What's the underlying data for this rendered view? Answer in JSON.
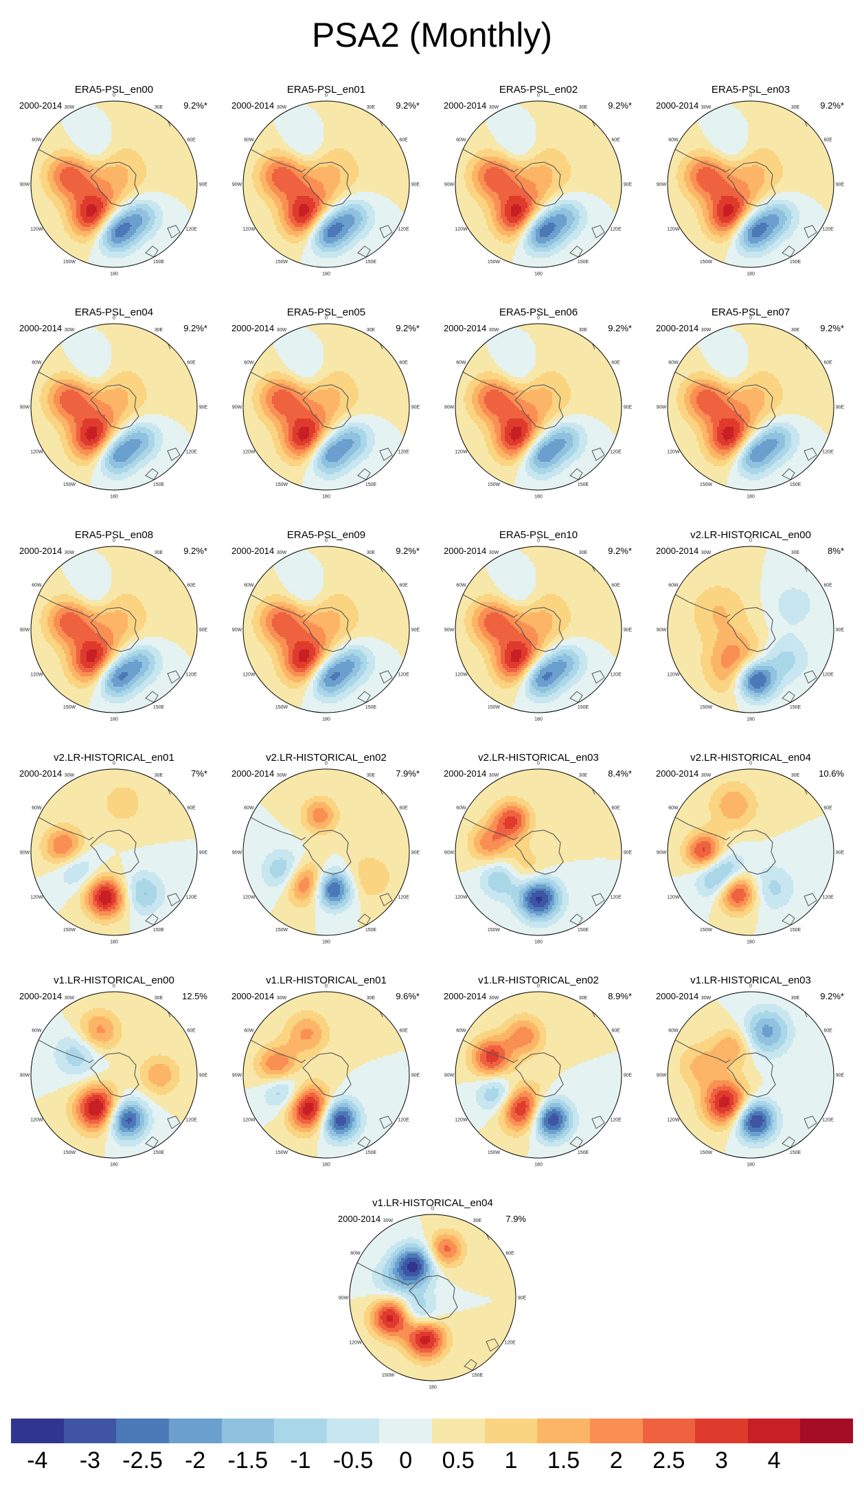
{
  "title": "PSA2 (Monthly)",
  "colors": {
    "levels": [
      "#30368f",
      "#3f55a4",
      "#4b79b7",
      "#6b9fcd",
      "#90c1df",
      "#aad7e8",
      "#c7e6f0",
      "#e4f2f2",
      "#f7e7a9",
      "#fbd482",
      "#fcb566",
      "#f98f52",
      "#ee6240",
      "#df3b2c",
      "#c81f26",
      "#a50c26"
    ],
    "coast": "#555555"
  },
  "colorbar": {
    "ticks": [
      "-4",
      "-3",
      "-2.5",
      "-2",
      "-1.5",
      "-1",
      "-0.5",
      "0",
      "0.5",
      "1",
      "1.5",
      "2",
      "2.5",
      "3",
      "4"
    ]
  },
  "axis_labels": [
    "0",
    "30E",
    "60E",
    "90E",
    "120E",
    "150E",
    "180",
    "150W",
    "120W",
    "90W",
    "60W",
    "30W"
  ],
  "chart_data": [
    {
      "type": "heatmap",
      "title": "ERA5-PSL_en00",
      "years": "2000-2014",
      "pct": "9.2%*",
      "blobs": [
        {
          "a": 180,
          "r": 0.55,
          "v": -3.6,
          "s": 0.18
        },
        {
          "a": 210,
          "r": 0.45,
          "v": 3.6,
          "s": 0.2
        },
        {
          "a": 140,
          "r": 0.5,
          "v": -1.8,
          "s": 0.17
        },
        {
          "a": 280,
          "r": 0.55,
          "v": 2.2,
          "s": 0.2
        },
        {
          "a": 0,
          "r": 0.1,
          "v": 1.2,
          "s": 0.3
        },
        {
          "a": 330,
          "r": 0.5,
          "v": -1,
          "s": 0.18
        }
      ]
    },
    {
      "type": "heatmap",
      "title": "ERA5-PSL_en01",
      "years": "2000-2014",
      "pct": "9.2%*",
      "blobs": [
        {
          "a": 180,
          "r": 0.55,
          "v": -3.6,
          "s": 0.18
        },
        {
          "a": 210,
          "r": 0.45,
          "v": 3.6,
          "s": 0.2
        },
        {
          "a": 140,
          "r": 0.5,
          "v": -1.8,
          "s": 0.17
        },
        {
          "a": 280,
          "r": 0.55,
          "v": 2.2,
          "s": 0.2
        },
        {
          "a": 0,
          "r": 0.1,
          "v": 1.2,
          "s": 0.3
        },
        {
          "a": 330,
          "r": 0.5,
          "v": -1,
          "s": 0.18
        }
      ]
    },
    {
      "type": "heatmap",
      "title": "ERA5-PSL_en02",
      "years": "2000-2014",
      "pct": "9.2%*",
      "blobs": [
        {
          "a": 180,
          "r": 0.55,
          "v": -3.6,
          "s": 0.18
        },
        {
          "a": 210,
          "r": 0.45,
          "v": 3.6,
          "s": 0.2
        },
        {
          "a": 140,
          "r": 0.5,
          "v": -1.8,
          "s": 0.17
        },
        {
          "a": 280,
          "r": 0.55,
          "v": 2.2,
          "s": 0.2
        },
        {
          "a": 0,
          "r": 0.1,
          "v": 1.2,
          "s": 0.3
        },
        {
          "a": 330,
          "r": 0.5,
          "v": -1,
          "s": 0.18
        }
      ]
    },
    {
      "type": "heatmap",
      "title": "ERA5-PSL_en03",
      "years": "2000-2014",
      "pct": "9.2%*",
      "blobs": [
        {
          "a": 180,
          "r": 0.55,
          "v": -3.6,
          "s": 0.18
        },
        {
          "a": 210,
          "r": 0.45,
          "v": 3.6,
          "s": 0.2
        },
        {
          "a": 140,
          "r": 0.5,
          "v": -1.8,
          "s": 0.17
        },
        {
          "a": 280,
          "r": 0.55,
          "v": 2.2,
          "s": 0.2
        },
        {
          "a": 0,
          "r": 0.1,
          "v": 1.2,
          "s": 0.3
        },
        {
          "a": 330,
          "r": 0.5,
          "v": -1,
          "s": 0.18
        }
      ]
    },
    {
      "type": "heatmap",
      "title": "ERA5-PSL_en04",
      "years": "2000-2014",
      "pct": "9.2%*",
      "blobs": [
        {
          "a": 180,
          "r": 0.55,
          "v": -3.2,
          "s": 0.18
        },
        {
          "a": 210,
          "r": 0.45,
          "v": 3.6,
          "s": 0.2
        },
        {
          "a": 140,
          "r": 0.5,
          "v": -1.8,
          "s": 0.17
        },
        {
          "a": 280,
          "r": 0.55,
          "v": 2.2,
          "s": 0.2
        },
        {
          "a": 0,
          "r": 0.1,
          "v": 1.2,
          "s": 0.3
        },
        {
          "a": 330,
          "r": 0.5,
          "v": -1,
          "s": 0.18
        }
      ]
    },
    {
      "type": "heatmap",
      "title": "ERA5-PSL_en05",
      "years": "2000-2014",
      "pct": "9.2%*",
      "blobs": [
        {
          "a": 180,
          "r": 0.55,
          "v": -3.2,
          "s": 0.18
        },
        {
          "a": 210,
          "r": 0.45,
          "v": 3.6,
          "s": 0.2
        },
        {
          "a": 140,
          "r": 0.5,
          "v": -1.8,
          "s": 0.17
        },
        {
          "a": 280,
          "r": 0.55,
          "v": 2.2,
          "s": 0.2
        },
        {
          "a": 0,
          "r": 0.1,
          "v": 1.2,
          "s": 0.3
        },
        {
          "a": 330,
          "r": 0.5,
          "v": -1,
          "s": 0.18
        }
      ]
    },
    {
      "type": "heatmap",
      "title": "ERA5-PSL_en06",
      "years": "2000-2014",
      "pct": "9.2%*",
      "blobs": [
        {
          "a": 180,
          "r": 0.55,
          "v": -3.2,
          "s": 0.18
        },
        {
          "a": 210,
          "r": 0.45,
          "v": 3.6,
          "s": 0.2
        },
        {
          "a": 140,
          "r": 0.5,
          "v": -1.8,
          "s": 0.17
        },
        {
          "a": 280,
          "r": 0.55,
          "v": 2.2,
          "s": 0.2
        },
        {
          "a": 0,
          "r": 0.1,
          "v": 1.2,
          "s": 0.3
        },
        {
          "a": 330,
          "r": 0.5,
          "v": -1,
          "s": 0.18
        }
      ]
    },
    {
      "type": "heatmap",
      "title": "ERA5-PSL_en07",
      "years": "2000-2014",
      "pct": "9.2%*",
      "blobs": [
        {
          "a": 180,
          "r": 0.55,
          "v": -3.2,
          "s": 0.18
        },
        {
          "a": 210,
          "r": 0.45,
          "v": 3.6,
          "s": 0.2
        },
        {
          "a": 140,
          "r": 0.5,
          "v": -1.8,
          "s": 0.17
        },
        {
          "a": 280,
          "r": 0.55,
          "v": 2.2,
          "s": 0.2
        },
        {
          "a": 0,
          "r": 0.1,
          "v": 1.2,
          "s": 0.3
        },
        {
          "a": 330,
          "r": 0.5,
          "v": -1,
          "s": 0.18
        }
      ]
    },
    {
      "type": "heatmap",
      "title": "ERA5-PSL_en08",
      "years": "2000-2014",
      "pct": "9.2%*",
      "blobs": [
        {
          "a": 180,
          "r": 0.55,
          "v": -3.4,
          "s": 0.18
        },
        {
          "a": 210,
          "r": 0.45,
          "v": 3.6,
          "s": 0.2
        },
        {
          "a": 140,
          "r": 0.5,
          "v": -1.8,
          "s": 0.17
        },
        {
          "a": 280,
          "r": 0.55,
          "v": 2.2,
          "s": 0.2
        },
        {
          "a": 0,
          "r": 0.1,
          "v": 1.2,
          "s": 0.3
        },
        {
          "a": 330,
          "r": 0.5,
          "v": -1,
          "s": 0.18
        }
      ]
    },
    {
      "type": "heatmap",
      "title": "ERA5-PSL_en09",
      "years": "2000-2014",
      "pct": "9.2%*",
      "blobs": [
        {
          "a": 180,
          "r": 0.55,
          "v": -3.4,
          "s": 0.18
        },
        {
          "a": 210,
          "r": 0.45,
          "v": 3.6,
          "s": 0.2
        },
        {
          "a": 140,
          "r": 0.5,
          "v": -1.8,
          "s": 0.17
        },
        {
          "a": 280,
          "r": 0.55,
          "v": 2.2,
          "s": 0.2
        },
        {
          "a": 0,
          "r": 0.1,
          "v": 1.2,
          "s": 0.3
        },
        {
          "a": 330,
          "r": 0.5,
          "v": -1,
          "s": 0.18
        }
      ]
    },
    {
      "type": "heatmap",
      "title": "ERA5-PSL_en10",
      "years": "2000-2014",
      "pct": "9.2%*",
      "blobs": [
        {
          "a": 180,
          "r": 0.55,
          "v": -3.4,
          "s": 0.18
        },
        {
          "a": 210,
          "r": 0.45,
          "v": 3.6,
          "s": 0.2
        },
        {
          "a": 140,
          "r": 0.5,
          "v": -1.8,
          "s": 0.17
        },
        {
          "a": 280,
          "r": 0.55,
          "v": 2.2,
          "s": 0.2
        },
        {
          "a": 0,
          "r": 0.1,
          "v": 1.2,
          "s": 0.3
        },
        {
          "a": 330,
          "r": 0.5,
          "v": -1,
          "s": 0.18
        }
      ]
    },
    {
      "type": "heatmap",
      "title": "v2.LR-HISTORICAL_en00",
      "years": "2000-2014",
      "pct": "8%*",
      "blobs": [
        {
          "a": 175,
          "r": 0.6,
          "v": -4,
          "s": 0.17
        },
        {
          "a": 200,
          "r": 0.45,
          "v": 2.2,
          "s": 0.25
        },
        {
          "a": 130,
          "r": 0.55,
          "v": -1.2,
          "s": 0.2
        },
        {
          "a": 300,
          "r": 0.45,
          "v": 1,
          "s": 0.25
        },
        {
          "a": 60,
          "r": 0.6,
          "v": -0.8,
          "s": 0.2
        }
      ]
    },
    {
      "type": "heatmap",
      "title": "v2.LR-HISTORICAL_en01",
      "years": "2000-2014",
      "pct": "7%*",
      "blobs": [
        {
          "a": 190,
          "r": 0.55,
          "v": 3.5,
          "s": 0.17
        },
        {
          "a": 145,
          "r": 0.6,
          "v": -1.6,
          "s": 0.18
        },
        {
          "a": 250,
          "r": 0.5,
          "v": -1.4,
          "s": 0.18
        },
        {
          "a": 275,
          "r": 0.6,
          "v": 2.4,
          "s": 0.17
        },
        {
          "a": 10,
          "r": 0.6,
          "v": 0.8,
          "s": 0.2
        }
      ]
    },
    {
      "type": "heatmap",
      "title": "v2.LR-HISTORICAL_en02",
      "years": "2000-2014",
      "pct": "7.9%*",
      "blobs": [
        {
          "a": 170,
          "r": 0.45,
          "v": -3.4,
          "s": 0.16
        },
        {
          "a": 215,
          "r": 0.45,
          "v": 2.6,
          "s": 0.18
        },
        {
          "a": 245,
          "r": 0.55,
          "v": -1.8,
          "s": 0.18
        },
        {
          "a": 350,
          "r": 0.45,
          "v": 1.8,
          "s": 0.15
        },
        {
          "a": 120,
          "r": 0.6,
          "v": 1,
          "s": 0.2
        }
      ]
    },
    {
      "type": "heatmap",
      "title": "v2.LR-HISTORICAL_en03",
      "years": "2000-2014",
      "pct": "8.4%*",
      "blobs": [
        {
          "a": 180,
          "r": 0.55,
          "v": -3.8,
          "s": 0.18
        },
        {
          "a": 320,
          "r": 0.5,
          "v": 2.6,
          "s": 0.16
        },
        {
          "a": 235,
          "r": 0.55,
          "v": -1.8,
          "s": 0.17
        },
        {
          "a": 280,
          "r": 0.6,
          "v": 1.8,
          "s": 0.17
        },
        {
          "a": 215,
          "r": 0.3,
          "v": 1.2,
          "s": 0.2
        }
      ]
    },
    {
      "type": "heatmap",
      "title": "v2.LR-HISTORICAL_en04",
      "years": "2000-2014",
      "pct": "10.6%",
      "blobs": [
        {
          "a": 200,
          "r": 0.5,
          "v": 3.6,
          "s": 0.17
        },
        {
          "a": 230,
          "r": 0.45,
          "v": -2.8,
          "s": 0.2
        },
        {
          "a": 270,
          "r": 0.55,
          "v": 3,
          "s": 0.16
        },
        {
          "a": 150,
          "r": 0.5,
          "v": -1.2,
          "s": 0.2
        },
        {
          "a": 340,
          "r": 0.6,
          "v": 1.4,
          "s": 0.2
        }
      ]
    },
    {
      "type": "heatmap",
      "title": "v1.LR-HISTORICAL_en00",
      "years": "2000-2014",
      "pct": "12.5%",
      "blobs": [
        {
          "a": 165,
          "r": 0.55,
          "v": -3.6,
          "s": 0.17
        },
        {
          "a": 205,
          "r": 0.45,
          "v": 3.8,
          "s": 0.19
        },
        {
          "a": 300,
          "r": 0.5,
          "v": -1.4,
          "s": 0.2
        },
        {
          "a": 340,
          "r": 0.55,
          "v": 1.8,
          "s": 0.18
        },
        {
          "a": 90,
          "r": 0.55,
          "v": 1.4,
          "s": 0.17
        }
      ]
    },
    {
      "type": "heatmap",
      "title": "v1.LR-HISTORICAL_en01",
      "years": "2000-2014",
      "pct": "9.6%*",
      "blobs": [
        {
          "a": 165,
          "r": 0.55,
          "v": -3.8,
          "s": 0.17
        },
        {
          "a": 205,
          "r": 0.45,
          "v": 3.8,
          "s": 0.19
        },
        {
          "a": 250,
          "r": 0.55,
          "v": -1.8,
          "s": 0.17
        },
        {
          "a": 280,
          "r": 0.6,
          "v": 2.2,
          "s": 0.17
        },
        {
          "a": 335,
          "r": 0.55,
          "v": 1.6,
          "s": 0.18
        }
      ]
    },
    {
      "type": "heatmap",
      "title": "v1.LR-HISTORICAL_en02",
      "years": "2000-2014",
      "pct": "8.9%*",
      "blobs": [
        {
          "a": 165,
          "r": 0.55,
          "v": -3.8,
          "s": 0.17
        },
        {
          "a": 205,
          "r": 0.45,
          "v": 3.4,
          "s": 0.19
        },
        {
          "a": 245,
          "r": 0.55,
          "v": -1.8,
          "s": 0.17
        },
        {
          "a": 290,
          "r": 0.6,
          "v": 2.8,
          "s": 0.17
        },
        {
          "a": 340,
          "r": 0.5,
          "v": 1.8,
          "s": 0.17
        }
      ]
    },
    {
      "type": "heatmap",
      "title": "v1.LR-HISTORICAL_en03",
      "years": "2000-2014",
      "pct": "9.2%*",
      "blobs": [
        {
          "a": 175,
          "r": 0.55,
          "v": -3.8,
          "s": 0.17
        },
        {
          "a": 220,
          "r": 0.45,
          "v": 3.4,
          "s": 0.19
        },
        {
          "a": 20,
          "r": 0.55,
          "v": -2.2,
          "s": 0.2
        },
        {
          "a": 280,
          "r": 0.6,
          "v": 1.2,
          "s": 0.2
        },
        {
          "a": 330,
          "r": 0.4,
          "v": 1.4,
          "s": 0.17
        }
      ]
    },
    {
      "type": "heatmap",
      "title": "v1.LR-HISTORICAL_en04",
      "years": "2000-2014",
      "pct": "7.9%",
      "blobs": [
        {
          "a": 330,
          "r": 0.45,
          "v": -3.4,
          "s": 0.17
        },
        {
          "a": 190,
          "r": 0.5,
          "v": 3.4,
          "s": 0.17
        },
        {
          "a": 245,
          "r": 0.55,
          "v": 3.4,
          "s": 0.17
        },
        {
          "a": 220,
          "r": 0.25,
          "v": -1.6,
          "s": 0.17
        },
        {
          "a": 15,
          "r": 0.6,
          "v": 2.2,
          "s": 0.15
        },
        {
          "a": 290,
          "r": 0.5,
          "v": -1.2,
          "s": 0.2
        }
      ]
    }
  ]
}
